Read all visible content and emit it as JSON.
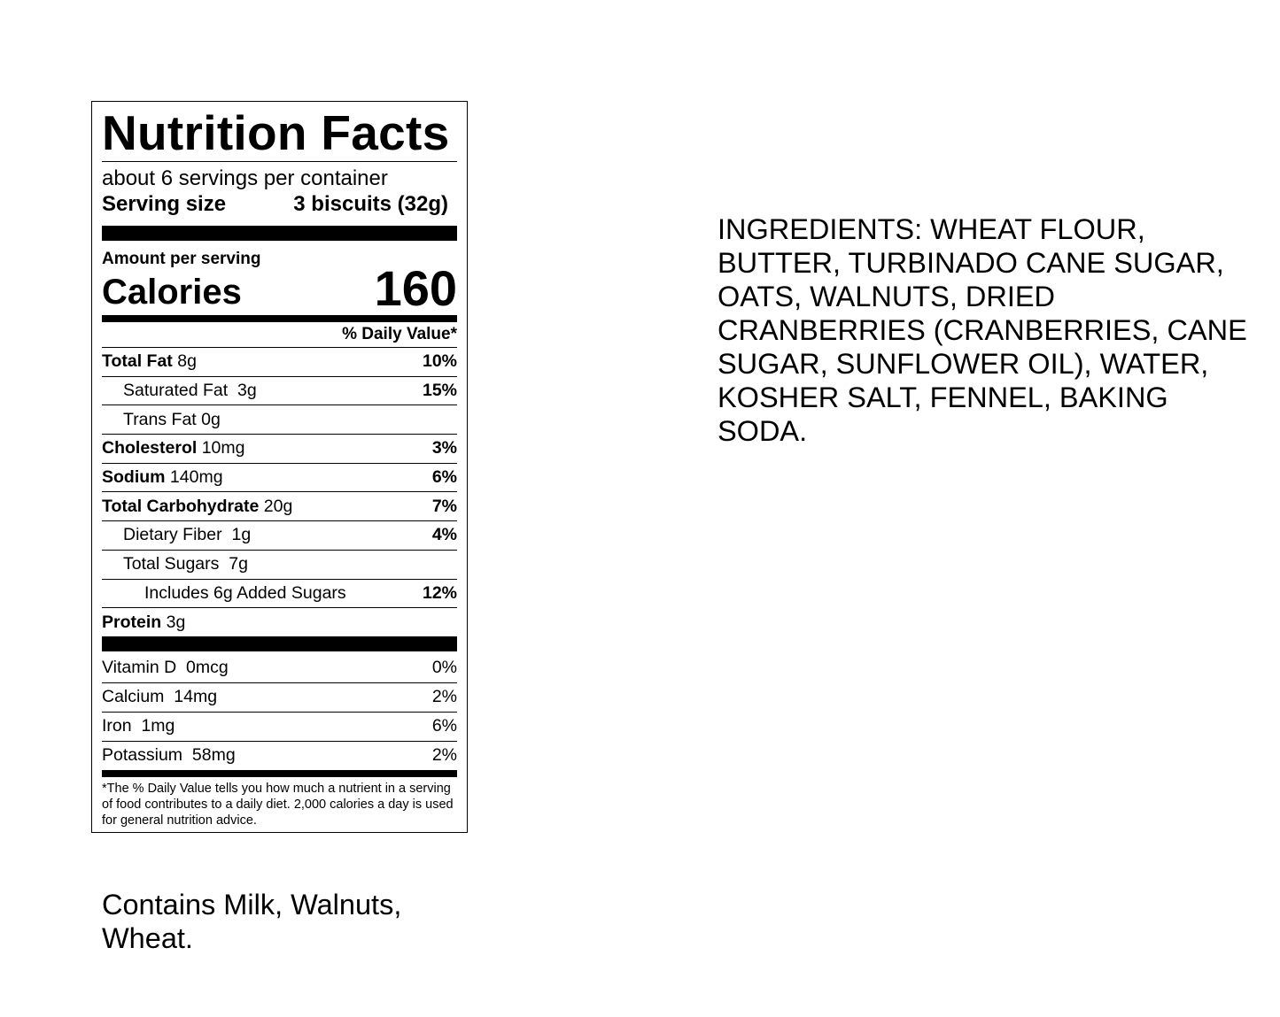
{
  "label": {
    "title": "Nutrition Facts",
    "servings_per_container": "about 6 servings per container",
    "serving_size_label": "Serving size",
    "serving_size_value": "3 biscuits (32g)",
    "amount_per_serving": "Amount per serving",
    "calories_label": "Calories",
    "calories_value": "160",
    "daily_value_header": "% Daily Value*",
    "nutrients": [
      {
        "name": "Total Fat",
        "amount": "8g",
        "dv": "10%"
      },
      {
        "name": "Saturated Fat",
        "amount": "3g",
        "dv": "15%"
      },
      {
        "name": "Trans Fat",
        "amount": "0g",
        "dv": ""
      },
      {
        "name": "Cholesterol",
        "amount": "10mg",
        "dv": "3%"
      },
      {
        "name": "Sodium",
        "amount": "140mg",
        "dv": "6%"
      },
      {
        "name": "Total Carbohydrate",
        "amount": "20g",
        "dv": "7%"
      },
      {
        "name": "Dietary Fiber",
        "amount": "1g",
        "dv": "4%"
      },
      {
        "name": "Total Sugars",
        "amount": "7g",
        "dv": ""
      },
      {
        "name": "Includes 6g Added Sugars",
        "amount": "",
        "dv": "12%"
      },
      {
        "name": "Protein",
        "amount": "3g",
        "dv": ""
      }
    ],
    "vitamins": [
      {
        "name": "Vitamin D",
        "amount": "0mcg",
        "dv": "0%"
      },
      {
        "name": "Calcium",
        "amount": "14mg",
        "dv": "2%"
      },
      {
        "name": "Iron",
        "amount": "1mg",
        "dv": "6%"
      },
      {
        "name": "Potassium",
        "amount": "58mg",
        "dv": "2%"
      }
    ],
    "footnote": "*The % Daily Value tells you how much a nutrient in a serving of food contributes to a daily diet. 2,000 calories a day is used for general nutrition advice."
  },
  "ingredients": "INGREDIENTS: WHEAT FLOUR, BUTTER, TURBINADO CANE SUGAR, OATS, WALNUTS, DRIED CRANBERRIES (CRANBERRIES, CANE SUGAR, SUNFLOWER OIL), WATER, KOSHER SALT, FENNEL, BAKING SODA.",
  "allergens": "Contains Milk, Walnuts, Wheat."
}
